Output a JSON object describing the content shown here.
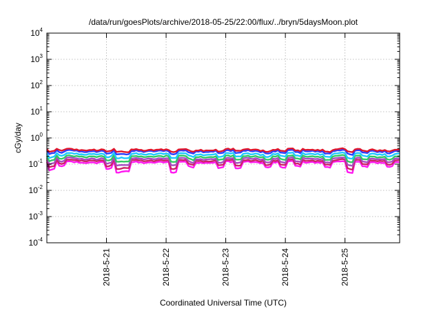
{
  "chart_data": {
    "type": "line",
    "title": "/data/run/goesPlots/archive/2018-05-25/22:00/flux/../bryn/5daysMoon.plot",
    "xlabel": "Coordinated Universal Time (UTC)",
    "ylabel": "cGy/day",
    "yscale": "log",
    "ylim": [
      0.0001,
      10000
    ],
    "yticks": [
      {
        "base": "10",
        "exp": "-4",
        "value": 0.0001
      },
      {
        "base": "10",
        "exp": "-3",
        "value": 0.001
      },
      {
        "base": "10",
        "exp": "-2",
        "value": 0.01
      },
      {
        "base": "10",
        "exp": "-1",
        "value": 0.1
      },
      {
        "base": "10",
        "exp": "0",
        "value": 1
      },
      {
        "base": "10",
        "exp": "1",
        "value": 10
      },
      {
        "base": "10",
        "exp": "2",
        "value": 100
      },
      {
        "base": "10",
        "exp": "3",
        "value": 1000
      },
      {
        "base": "10",
        "exp": "4",
        "value": 10000
      }
    ],
    "xlim": [
      "2018-05-20T00:00",
      "2018-05-25T22:00"
    ],
    "xticks": [
      "2018-5-21",
      "2018-5-22",
      "2018-5-23",
      "2018-5-24",
      "2018-5-25"
    ],
    "grid": true,
    "sample_hours": 1,
    "series": [
      {
        "color": "#e0152b",
        "level": 0.36
      },
      {
        "color": "#2a3fff",
        "level": 0.32
      },
      {
        "color": "#1ec8ff",
        "level": 0.25
      },
      {
        "color": "#32c864",
        "level": 0.2
      },
      {
        "color": "#a84ac0",
        "level": 0.165
      },
      {
        "color": "#cc2266",
        "level": 0.14
      },
      {
        "color": "#ff18f0",
        "level": 0.12
      }
    ],
    "dips": [
      {
        "at": "2018-05-20T02:00",
        "factor": 0.55
      },
      {
        "at": "2018-05-20T06:00",
        "factor": 0.7
      },
      {
        "at": "2018-05-21T01:00",
        "factor": 0.6
      },
      {
        "at": "2018-05-21T05:00",
        "factor": 0.45
      },
      {
        "at": "2018-05-21T08:00",
        "factor": 0.5
      },
      {
        "at": "2018-05-22T03:00",
        "factor": 0.45
      },
      {
        "at": "2018-05-22T10:00",
        "factor": 0.7
      },
      {
        "at": "2018-05-22T22:00",
        "factor": 0.65
      },
      {
        "at": "2018-05-23T05:00",
        "factor": 0.6
      },
      {
        "at": "2018-05-23T17:00",
        "factor": 0.7
      },
      {
        "at": "2018-05-23T23:00",
        "factor": 0.65
      },
      {
        "at": "2018-05-24T05:00",
        "factor": 0.7
      },
      {
        "at": "2018-05-24T17:00",
        "factor": 0.72
      },
      {
        "at": "2018-05-25T02:00",
        "factor": 0.45
      },
      {
        "at": "2018-05-25T08:00",
        "factor": 0.7
      },
      {
        "at": "2018-05-25T18:00",
        "factor": 0.72
      }
    ]
  }
}
